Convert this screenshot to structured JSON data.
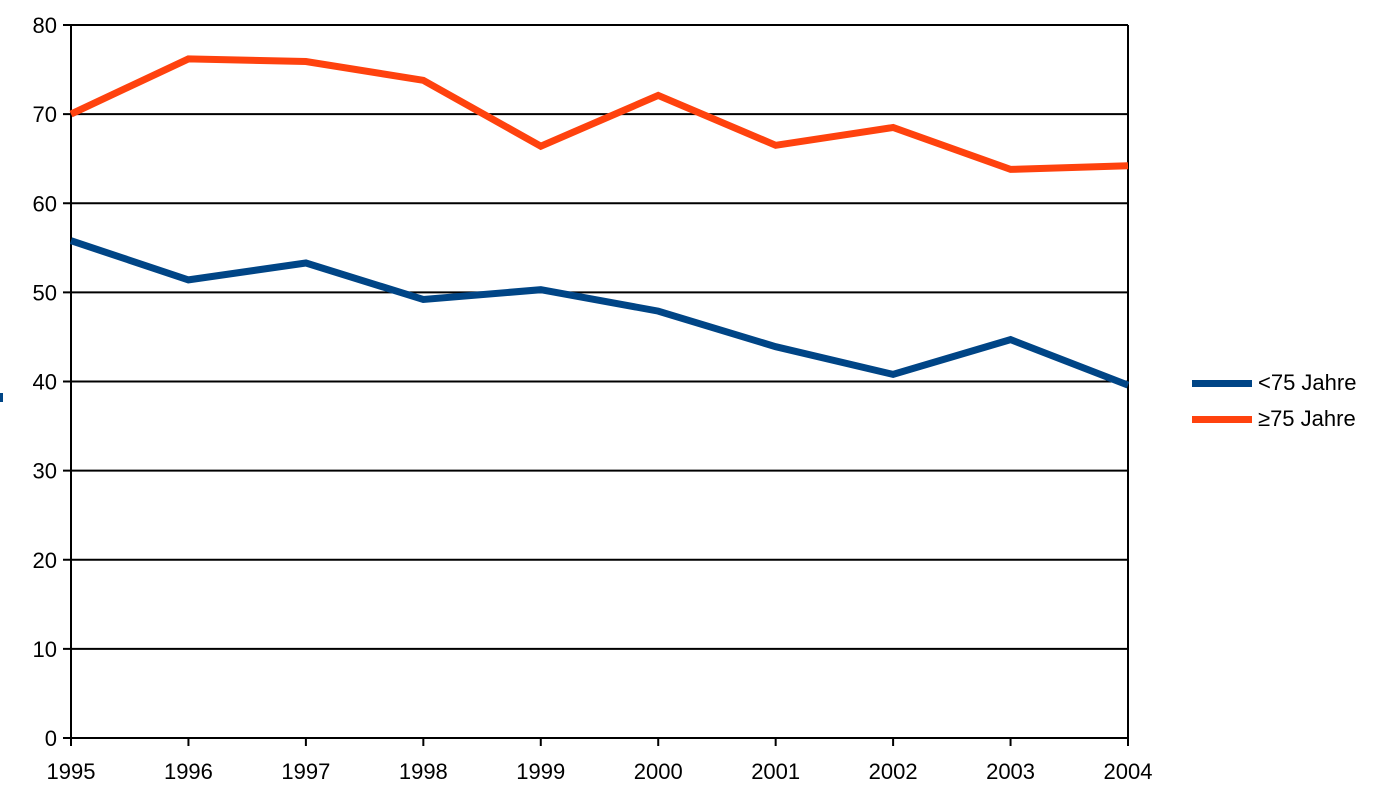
{
  "chart_data": {
    "type": "line",
    "title": "",
    "xlabel": "",
    "ylabel": "",
    "x": [
      "1995",
      "1996",
      "1997",
      "1998",
      "1999",
      "2000",
      "2001",
      "2002",
      "2003",
      "2004"
    ],
    "series": [
      {
        "name": "<75 Jahre",
        "color": "#004586",
        "values": [
          55.8,
          51.4,
          53.3,
          49.2,
          50.3,
          47.9,
          43.9,
          40.8,
          44.7,
          39.6
        ]
      },
      {
        "name": "≥75 Jahre",
        "color": "#ff420e",
        "values": [
          70.0,
          76.2,
          75.9,
          73.8,
          66.4,
          72.1,
          66.5,
          68.5,
          63.8,
          64.2
        ]
      }
    ],
    "ylim": [
      0,
      80
    ],
    "yticks": [
      0,
      10,
      20,
      30,
      40,
      50,
      60,
      70,
      80
    ],
    "grid": true,
    "legend_position": "right"
  },
  "legend": {
    "items": [
      {
        "label": "<75 Jahre",
        "color": "#004586"
      },
      {
        "label": "≥75 Jahre",
        "color": "#ff420e"
      }
    ]
  }
}
